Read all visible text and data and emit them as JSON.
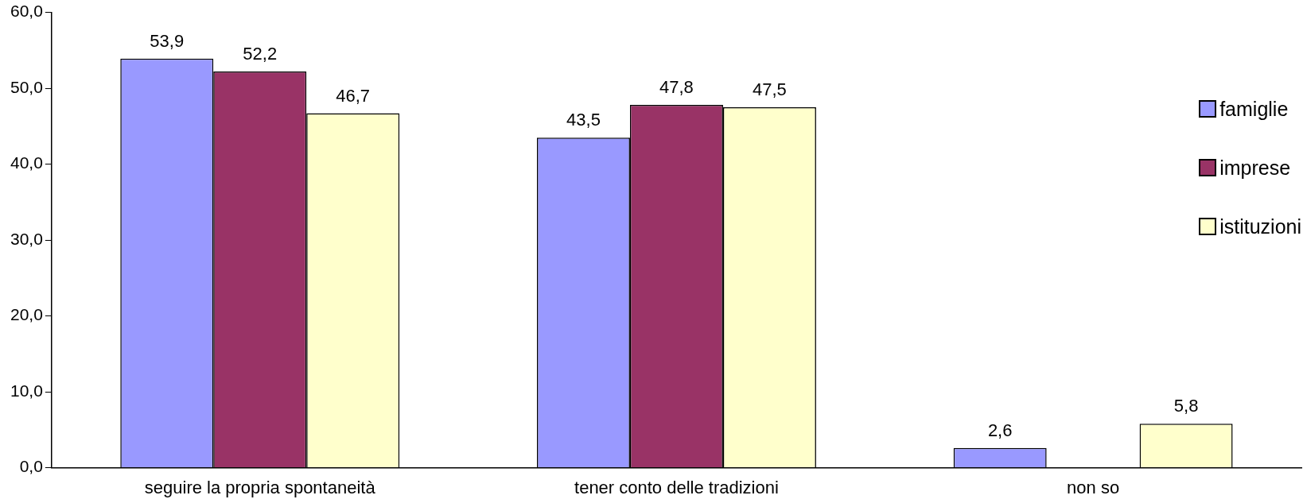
{
  "chart_data": {
    "type": "bar",
    "categories": [
      "seguire la propria spontaneità",
      "tener conto delle tradizioni",
      "non so"
    ],
    "series": [
      {
        "name": "famiglie",
        "color": "#9999ff",
        "values": [
          53.9,
          43.5,
          2.6
        ],
        "value_labels": [
          "53,9",
          "43,5",
          "2,6"
        ]
      },
      {
        "name": "imprese",
        "color": "#993366",
        "values": [
          52.2,
          47.8,
          null
        ],
        "value_labels": [
          "52,2",
          "47,8",
          null
        ]
      },
      {
        "name": "istituzioni",
        "color": "#ffffcc",
        "values": [
          46.7,
          47.5,
          5.8
        ],
        "value_labels": [
          "46,7",
          "47,5",
          "5,8"
        ]
      }
    ],
    "ylim": [
      0,
      60
    ],
    "yticks": [
      {
        "value": 0,
        "label": "0,0"
      },
      {
        "value": 10,
        "label": "10,0"
      },
      {
        "value": 20,
        "label": "20,0"
      },
      {
        "value": 30,
        "label": "30,0"
      },
      {
        "value": 40,
        "label": "40,0"
      },
      {
        "value": 50,
        "label": "50,0"
      },
      {
        "value": 60,
        "label": "60,0"
      }
    ],
    "grid": false,
    "legend": "top right"
  }
}
